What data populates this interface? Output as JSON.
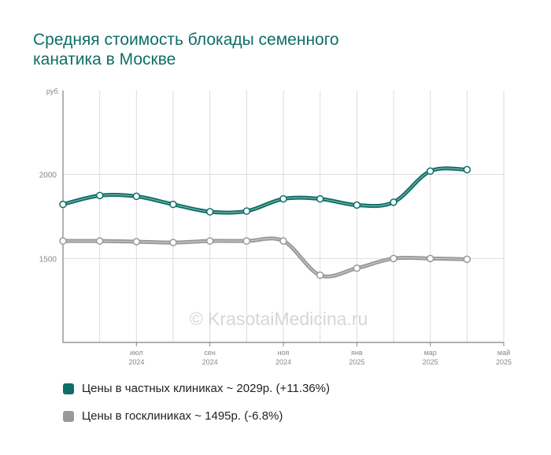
{
  "chart_data": {
    "type": "line",
    "title_lines": [
      "Средняя стоимость блокады семенного",
      "канатика в Москве"
    ],
    "unit_label": "руб.",
    "x": [
      "2024-05",
      "2024-06",
      "2024-07",
      "2024-08",
      "2024-09",
      "2024-10",
      "2024-11",
      "2024-12",
      "2025-01",
      "2025-02",
      "2025-03",
      "2025-04",
      "2025-05"
    ],
    "x_tick_labels": [
      {
        "x": "2024-07",
        "month": "июл",
        "year": "2024"
      },
      {
        "x": "2024-09",
        "month": "сен",
        "year": "2024"
      },
      {
        "x": "2024-11",
        "month": "ноя",
        "year": "2024"
      },
      {
        "x": "2025-01",
        "month": "янв",
        "year": "2025"
      },
      {
        "x": "2025-03",
        "month": "мар",
        "year": "2025"
      },
      {
        "x": "2025-05",
        "month": "май",
        "year": "2025"
      }
    ],
    "y_ticks": [
      1500,
      2000
    ],
    "ylim": [
      1000,
      2500
    ],
    "grid": true,
    "series": [
      {
        "name": "Цены в частных клиниках ~ 2029р. (+11.36%)",
        "color": "#0e6f66",
        "values": [
          1822,
          1875,
          1870,
          1822,
          1778,
          1782,
          1855,
          1855,
          1818,
          1835,
          2020,
          2029,
          null
        ]
      },
      {
        "name": "Цены в госклиниках ~ 1495р. (-6.8%)",
        "color": "#999999",
        "values": [
          1604,
          1604,
          1600,
          1595,
          1604,
          1604,
          1604,
          1400,
          1442,
          1500,
          1500,
          1495,
          null
        ]
      }
    ],
    "watermark": "© KrasotaiMedicina.ru",
    "legend_position": "bottom-left"
  }
}
